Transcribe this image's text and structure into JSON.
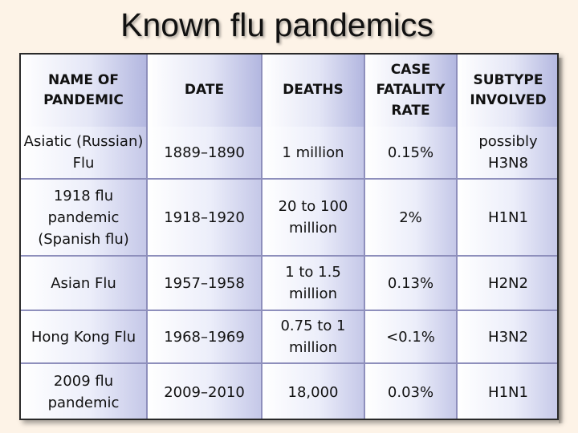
{
  "title": "Known flu pandemics",
  "table": {
    "headers": [
      "NAME OF PANDEMIC",
      "DATE",
      "DEATHS",
      "CASE FATALITY RATE",
      "SUBTYPE INVOLVED"
    ],
    "rows": [
      [
        "Asiatic (Russian) Flu",
        "1889–1890",
        "1 million",
        "0.15%",
        "possibly H3N8"
      ],
      [
        "1918 flu pandemic (Spanish flu)",
        "1918–1920",
        "20 to 100 million",
        "2%",
        "H1N1"
      ],
      [
        "Asian Flu",
        "1957–1958",
        "1 to 1.5 million",
        "0.13%",
        "H2N2"
      ],
      [
        "Hong Kong Flu",
        "1968–1969",
        "0.75 to 1 million",
        "<0.1%",
        "H3N2"
      ],
      [
        "2009 flu pandemic",
        "2009–2010",
        "18,000",
        "0.03%",
        "H1N1"
      ]
    ]
  }
}
